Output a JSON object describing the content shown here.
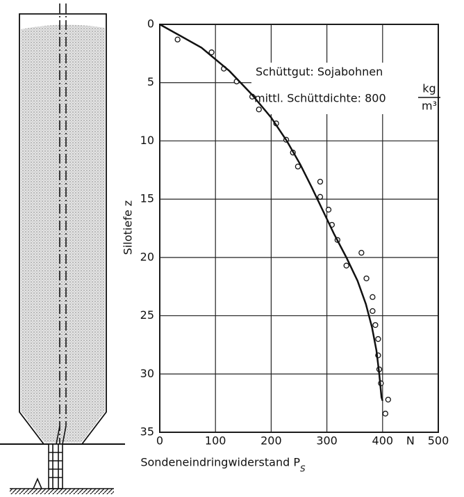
{
  "chart_data": {
    "type": "scatter",
    "xlabel": "Sondeneindringwiderstand P",
    "xlabel_subscript": "S",
    "ylabel": "Silotiefe z",
    "x_unit": "N",
    "annotations": [
      "Schüttgut: Sojabohnen",
      "mittl. Schüttdichte: 800",
      "kg",
      "m³"
    ],
    "xlim": [
      0,
      500
    ],
    "xticks": [
      0,
      100,
      200,
      300,
      400,
      500
    ],
    "ylim": [
      0,
      35
    ],
    "yticks": [
      0,
      5,
      10,
      15,
      20,
      25,
      30,
      35
    ],
    "y_inverted": true,
    "grid": true,
    "series": [
      {
        "type": "scatter",
        "color": "#111",
        "x": [
          32,
          93,
          115,
          138,
          166,
          178,
          209,
          227,
          239,
          248,
          288,
          288,
          303,
          309,
          319,
          335,
          362,
          371,
          382,
          382,
          387,
          392,
          392,
          394,
          397,
          410,
          405
        ],
        "values": [
          1.3,
          2.4,
          3.8,
          4.9,
          6.2,
          7.3,
          8.5,
          9.9,
          11.0,
          12.2,
          13.5,
          14.8,
          15.9,
          17.2,
          18.5,
          20.7,
          19.6,
          21.8,
          23.4,
          24.6,
          25.8,
          27.0,
          28.4,
          29.6,
          30.8,
          32.2,
          33.4
        ]
      },
      {
        "type": "line",
        "color": "#111",
        "x": [
          0,
          75,
          125,
          165,
          200,
          228,
          252,
          273,
          293,
          313,
          335,
          355,
          370,
          381,
          389,
          394,
          398,
          400
        ],
        "values": [
          0,
          2,
          4,
          6,
          8,
          10,
          12,
          14,
          16,
          18,
          20,
          22,
          24,
          26,
          28,
          30,
          32,
          32.3
        ]
      }
    ]
  }
}
